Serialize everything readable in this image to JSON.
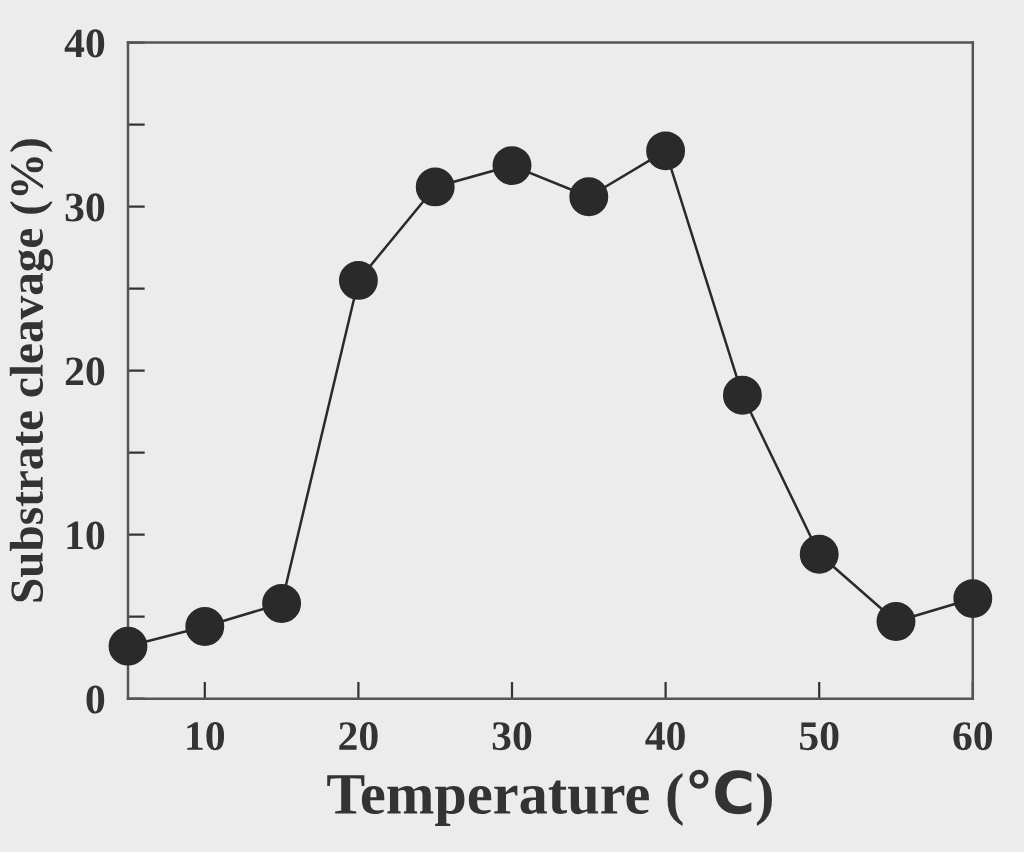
{
  "chart_data": {
    "type": "line",
    "xlabel": "Temperature (℃)",
    "ylabel": "Substrate cleavage (%)",
    "x": [
      5,
      10,
      15,
      20,
      25,
      30,
      35,
      40,
      45,
      50,
      55,
      60
    ],
    "series": [
      {
        "color": "#2a2a2a",
        "values": [
          3.2,
          4.4,
          5.8,
          25.5,
          31.2,
          32.5,
          30.6,
          33.4,
          18.5,
          8.8,
          4.7,
          6.1
        ]
      }
    ],
    "xlim": [
      5,
      60
    ],
    "xticks": [
      10,
      20,
      30,
      40,
      50,
      60
    ],
    "ylim": [
      0,
      40
    ],
    "yticks": [
      0,
      {
        "value": 5,
        "label": null
      },
      10,
      {
        "value": 15,
        "label": null
      },
      20,
      {
        "value": 25,
        "label": null
      },
      30,
      {
        "value": 35,
        "label": null
      },
      40
    ],
    "marker": "circle",
    "line_style": "solid",
    "grid": false,
    "legend": false
  }
}
